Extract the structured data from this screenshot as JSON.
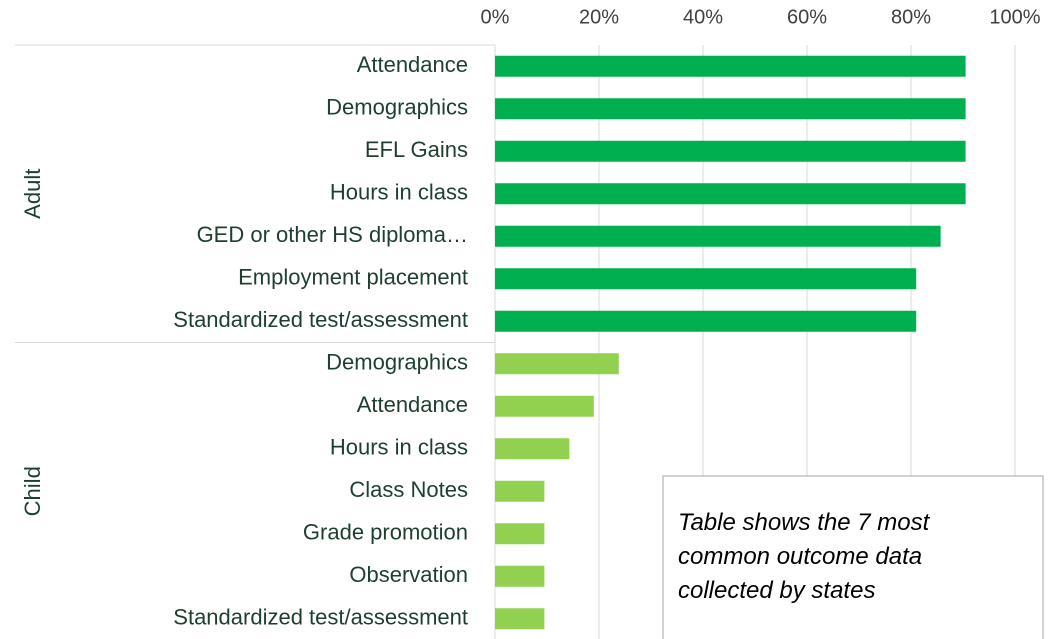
{
  "chart_data": {
    "type": "bar",
    "orientation": "horizontal",
    "groups": [
      {
        "name": "Adult",
        "color": "#00b050",
        "categories": [
          "Attendance",
          "Demographics",
          "EFL Gains",
          "Hours in class",
          "GED or other HS diploma…",
          "Employment placement",
          "Standardized test/assessment"
        ],
        "values": [
          90.5,
          90.5,
          90.5,
          90.5,
          85.7,
          81,
          81
        ]
      },
      {
        "name": "Child",
        "color": "#92d050",
        "categories": [
          "Demographics",
          "Attendance",
          "Hours in class",
          "Class Notes",
          "Grade promotion",
          "Observation",
          "Standardized test/assessment"
        ],
        "values": [
          23.8,
          19,
          14.3,
          9.5,
          9.5,
          9.5,
          9.5
        ]
      }
    ],
    "xlim": [
      0,
      100
    ],
    "xticks": [
      {
        "value": 0,
        "label": "0%"
      },
      {
        "value": 20,
        "label": "20%"
      },
      {
        "value": 40,
        "label": "40%"
      },
      {
        "value": 60,
        "label": "60%"
      },
      {
        "value": 80,
        "label": "80%"
      },
      {
        "value": 100,
        "label": "100%"
      }
    ],
    "grid": true,
    "annotation": [
      "Table shows the 7 most",
      "common outcome data",
      "collected by states"
    ]
  }
}
